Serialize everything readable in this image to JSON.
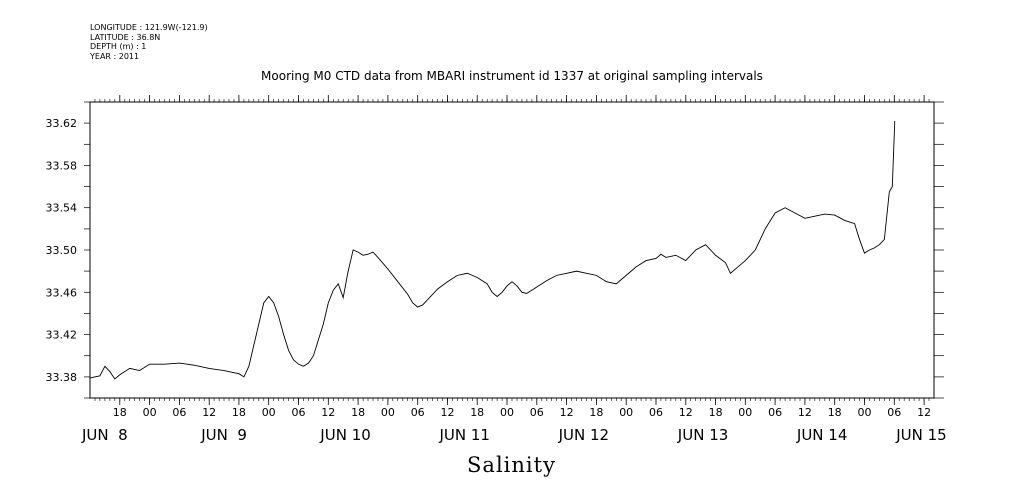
{
  "meta_lines": [
    "LONGITUDE : 121.9W(-121.9)",
    "LATITUDE : 36.8N",
    "DEPTH (m) : 1",
    "YEAR : 2011"
  ],
  "chart_data": {
    "type": "line",
    "title": "Mooring M0 CTD data from MBARI instrument id 1337 at original sampling intervals",
    "xlabel": "Salinity",
    "ylabel": "",
    "x_unit": "hours since Jun 7 12:00",
    "xlim": [
      0,
      170
    ],
    "ylim": [
      33.36,
      33.64
    ],
    "yticks": [
      33.38,
      33.42,
      33.46,
      33.5,
      33.54,
      33.58,
      33.62
    ],
    "ytick_labels": [
      "33.38",
      "33.42",
      "33.46",
      "33.50",
      "33.54",
      "33.58",
      "33.62"
    ],
    "xticks_hours": [
      6,
      12,
      18,
      24,
      30,
      36,
      42,
      48,
      54,
      60,
      66,
      72,
      78,
      84,
      90,
      96,
      102,
      108,
      114,
      120,
      126,
      132,
      138,
      144,
      150,
      156,
      162,
      168
    ],
    "xtick_labels": [
      "18",
      "00",
      "06",
      "12",
      "18",
      "00",
      "06",
      "12",
      "18",
      "00",
      "06",
      "12",
      "18",
      "00",
      "06",
      "12",
      "18",
      "00",
      "06",
      "12",
      "18",
      "00",
      "06",
      "12",
      "18",
      "00",
      "06",
      "12"
    ],
    "day_labels": [
      {
        "hour": 0,
        "label": "JUN  8"
      },
      {
        "hour": 24,
        "label": "JUN  9"
      },
      {
        "hour": 48,
        "label": "JUN 10"
      },
      {
        "hour": 72,
        "label": "JUN 11"
      },
      {
        "hour": 96,
        "label": "JUN 12"
      },
      {
        "hour": 120,
        "label": "JUN 13"
      },
      {
        "hour": 144,
        "label": "JUN 14"
      },
      {
        "hour": 164,
        "label": "JUN 15"
      }
    ],
    "series": [
      {
        "color": "#000000",
        "points": [
          [
            0,
            33.379
          ],
          [
            2,
            33.381
          ],
          [
            3,
            33.39
          ],
          [
            4,
            33.385
          ],
          [
            5,
            33.378
          ],
          [
            6,
            33.382
          ],
          [
            8,
            33.388
          ],
          [
            10,
            33.386
          ],
          [
            12,
            33.392
          ],
          [
            15,
            33.392
          ],
          [
            18,
            33.393
          ],
          [
            21,
            33.391
          ],
          [
            24,
            33.388
          ],
          [
            27,
            33.386
          ],
          [
            29,
            33.384
          ],
          [
            30,
            33.383
          ],
          [
            31,
            33.38
          ],
          [
            32,
            33.39
          ],
          [
            33,
            33.41
          ],
          [
            34,
            33.43
          ],
          [
            35,
            33.45
          ],
          [
            36,
            33.456
          ],
          [
            37,
            33.45
          ],
          [
            38,
            33.437
          ],
          [
            39,
            33.42
          ],
          [
            40,
            33.405
          ],
          [
            41,
            33.396
          ],
          [
            42,
            33.392
          ],
          [
            43,
            33.39
          ],
          [
            44,
            33.393
          ],
          [
            45,
            33.4
          ],
          [
            46,
            33.415
          ],
          [
            47,
            33.43
          ],
          [
            48,
            33.45
          ],
          [
            49,
            33.462
          ],
          [
            50,
            33.468
          ],
          [
            51,
            33.455
          ],
          [
            52,
            33.48
          ],
          [
            53,
            33.5
          ],
          [
            54,
            33.498
          ],
          [
            55,
            33.495
          ],
          [
            56,
            33.496
          ],
          [
            57,
            33.498
          ],
          [
            58,
            33.493
          ],
          [
            60,
            33.482
          ],
          [
            62,
            33.47
          ],
          [
            64,
            33.458
          ],
          [
            65,
            33.45
          ],
          [
            66,
            33.446
          ],
          [
            67,
            33.448
          ],
          [
            68,
            33.453
          ],
          [
            70,
            33.463
          ],
          [
            72,
            33.47
          ],
          [
            74,
            33.476
          ],
          [
            76,
            33.478
          ],
          [
            77,
            33.476
          ],
          [
            78,
            33.474
          ],
          [
            80,
            33.468
          ],
          [
            81,
            33.46
          ],
          [
            82,
            33.456
          ],
          [
            83,
            33.46
          ],
          [
            84,
            33.466
          ],
          [
            85,
            33.47
          ],
          [
            86,
            33.466
          ],
          [
            87,
            33.46
          ],
          [
            88,
            33.459
          ],
          [
            90,
            33.465
          ],
          [
            92,
            33.471
          ],
          [
            94,
            33.476
          ],
          [
            96,
            33.478
          ],
          [
            98,
            33.48
          ],
          [
            100,
            33.478
          ],
          [
            102,
            33.476
          ],
          [
            104,
            33.47
          ],
          [
            106,
            33.468
          ],
          [
            108,
            33.476
          ],
          [
            110,
            33.484
          ],
          [
            112,
            33.49
          ],
          [
            114,
            33.492
          ],
          [
            115,
            33.496
          ],
          [
            116,
            33.493
          ],
          [
            118,
            33.495
          ],
          [
            120,
            33.49
          ],
          [
            122,
            33.5
          ],
          [
            124,
            33.505
          ],
          [
            126,
            33.495
          ],
          [
            128,
            33.488
          ],
          [
            129,
            33.478
          ],
          [
            130,
            33.482
          ],
          [
            132,
            33.49
          ],
          [
            134,
            33.5
          ],
          [
            136,
            33.52
          ],
          [
            138,
            33.535
          ],
          [
            140,
            33.54
          ],
          [
            142,
            33.535
          ],
          [
            144,
            33.53
          ],
          [
            146,
            33.532
          ],
          [
            148,
            33.534
          ],
          [
            150,
            33.533
          ],
          [
            152,
            33.528
          ],
          [
            154,
            33.525
          ],
          [
            155,
            33.51
          ],
          [
            156,
            33.497
          ],
          [
            157,
            33.5
          ],
          [
            158,
            33.502
          ],
          [
            159,
            33.505
          ],
          [
            160,
            33.51
          ],
          [
            161,
            33.555
          ],
          [
            161.6,
            33.56
          ],
          [
            162.1,
            33.622
          ]
        ]
      }
    ]
  }
}
